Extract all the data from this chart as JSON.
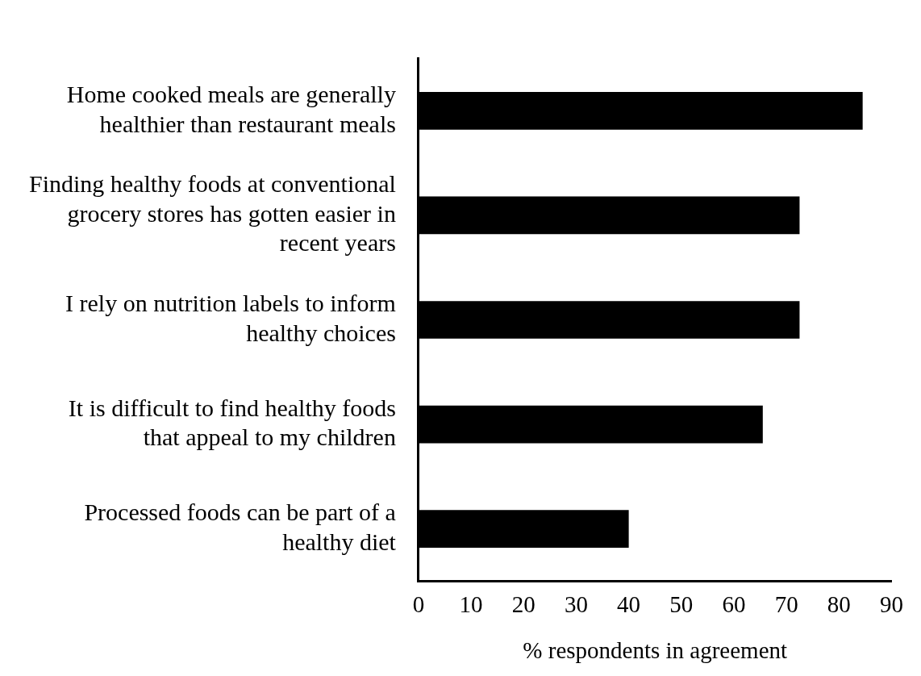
{
  "chart_data": {
    "type": "bar",
    "orientation": "horizontal",
    "xlabel": "% respondents in agreement",
    "categories": [
      "Home cooked meals are generally healthier than restaurant meals",
      "Finding healthy foods at conventional grocery stores has gotten easier in recent years",
      "I rely on nutrition labels to inform healthy choices",
      "It is difficult to find healthy foods that appeal to my children",
      "Processed foods can be part of a healthy diet"
    ],
    "values": [
      84.5,
      72.5,
      72.5,
      65.5,
      40
    ],
    "color": "#000000",
    "xlim": [
      0,
      90
    ],
    "xticks": [
      0,
      10,
      20,
      30,
      40,
      50,
      60,
      70,
      80,
      90
    ],
    "grid": false,
    "legend": false
  }
}
